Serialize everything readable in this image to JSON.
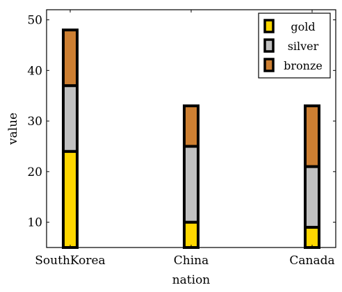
{
  "chart_data": {
    "type": "bar",
    "stacked": true,
    "categories": [
      "SouthKorea",
      "China",
      "Canada"
    ],
    "series": [
      {
        "name": "gold",
        "values": [
          24,
          10,
          9
        ],
        "color": "#FFD700"
      },
      {
        "name": "silver",
        "values": [
          13,
          15,
          12
        ],
        "color": "#C0C0C0"
      },
      {
        "name": "bronze",
        "values": [
          11,
          8,
          12
        ],
        "color": "#CD7F32"
      }
    ],
    "title": "",
    "xlabel": "nation",
    "ylabel": "value",
    "ylim": [
      5,
      52
    ],
    "yticks": [
      10,
      20,
      30,
      40,
      50
    ],
    "grid": false,
    "legend_position": "top-right"
  }
}
